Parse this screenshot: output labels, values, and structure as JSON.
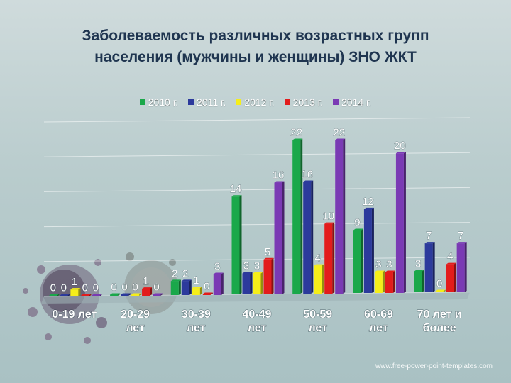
{
  "title": {
    "line1": "Заболеваемость различных возрастных групп",
    "line2": "населения (мужчины и женщины) ЗНО ЖКТ"
  },
  "footer": {
    "url": "www.free-power-point-templates.com"
  },
  "colors": {
    "2010": "#1aa84a",
    "2011": "#2c3a9c",
    "2012": "#f5ee1a",
    "2013": "#e31c1c",
    "2014": "#7a3ab4"
  },
  "chart_data": {
    "type": "bar",
    "title": "",
    "xlabel": "",
    "ylabel": "",
    "ylim": [
      0,
      25
    ],
    "grid": true,
    "legend_position": "top",
    "categories": [
      "0-19 лет",
      "20-29 лет",
      "30-39 лет",
      "40-49 лет",
      "50-59 лет",
      "60-69 лет",
      "70 лет и более"
    ],
    "category_lines": [
      [
        "0-19 лет"
      ],
      [
        "20-29",
        "лет"
      ],
      [
        "30-39",
        "лет"
      ],
      [
        "40-49",
        "лет"
      ],
      [
        "50-59",
        "лет"
      ],
      [
        "60-69",
        "лет"
      ],
      [
        "70 лет и",
        "более"
      ]
    ],
    "series": [
      {
        "name": "2010 г.",
        "key": "2010",
        "values": [
          0,
          0,
          2,
          14,
          22,
          9,
          3
        ]
      },
      {
        "name": "2011 г.",
        "key": "2011",
        "values": [
          0,
          0,
          2,
          3,
          16,
          12,
          7
        ]
      },
      {
        "name": "2012 г.",
        "key": "2012",
        "values": [
          1,
          0,
          1,
          3,
          4,
          3,
          0
        ]
      },
      {
        "name": "2013 г.",
        "key": "2013",
        "values": [
          0,
          1,
          0,
          5,
          10,
          3,
          4
        ]
      },
      {
        "name": "2014 г.",
        "key": "2014",
        "values": [
          0,
          0,
          3,
          16,
          22,
          20,
          7
        ]
      }
    ]
  }
}
